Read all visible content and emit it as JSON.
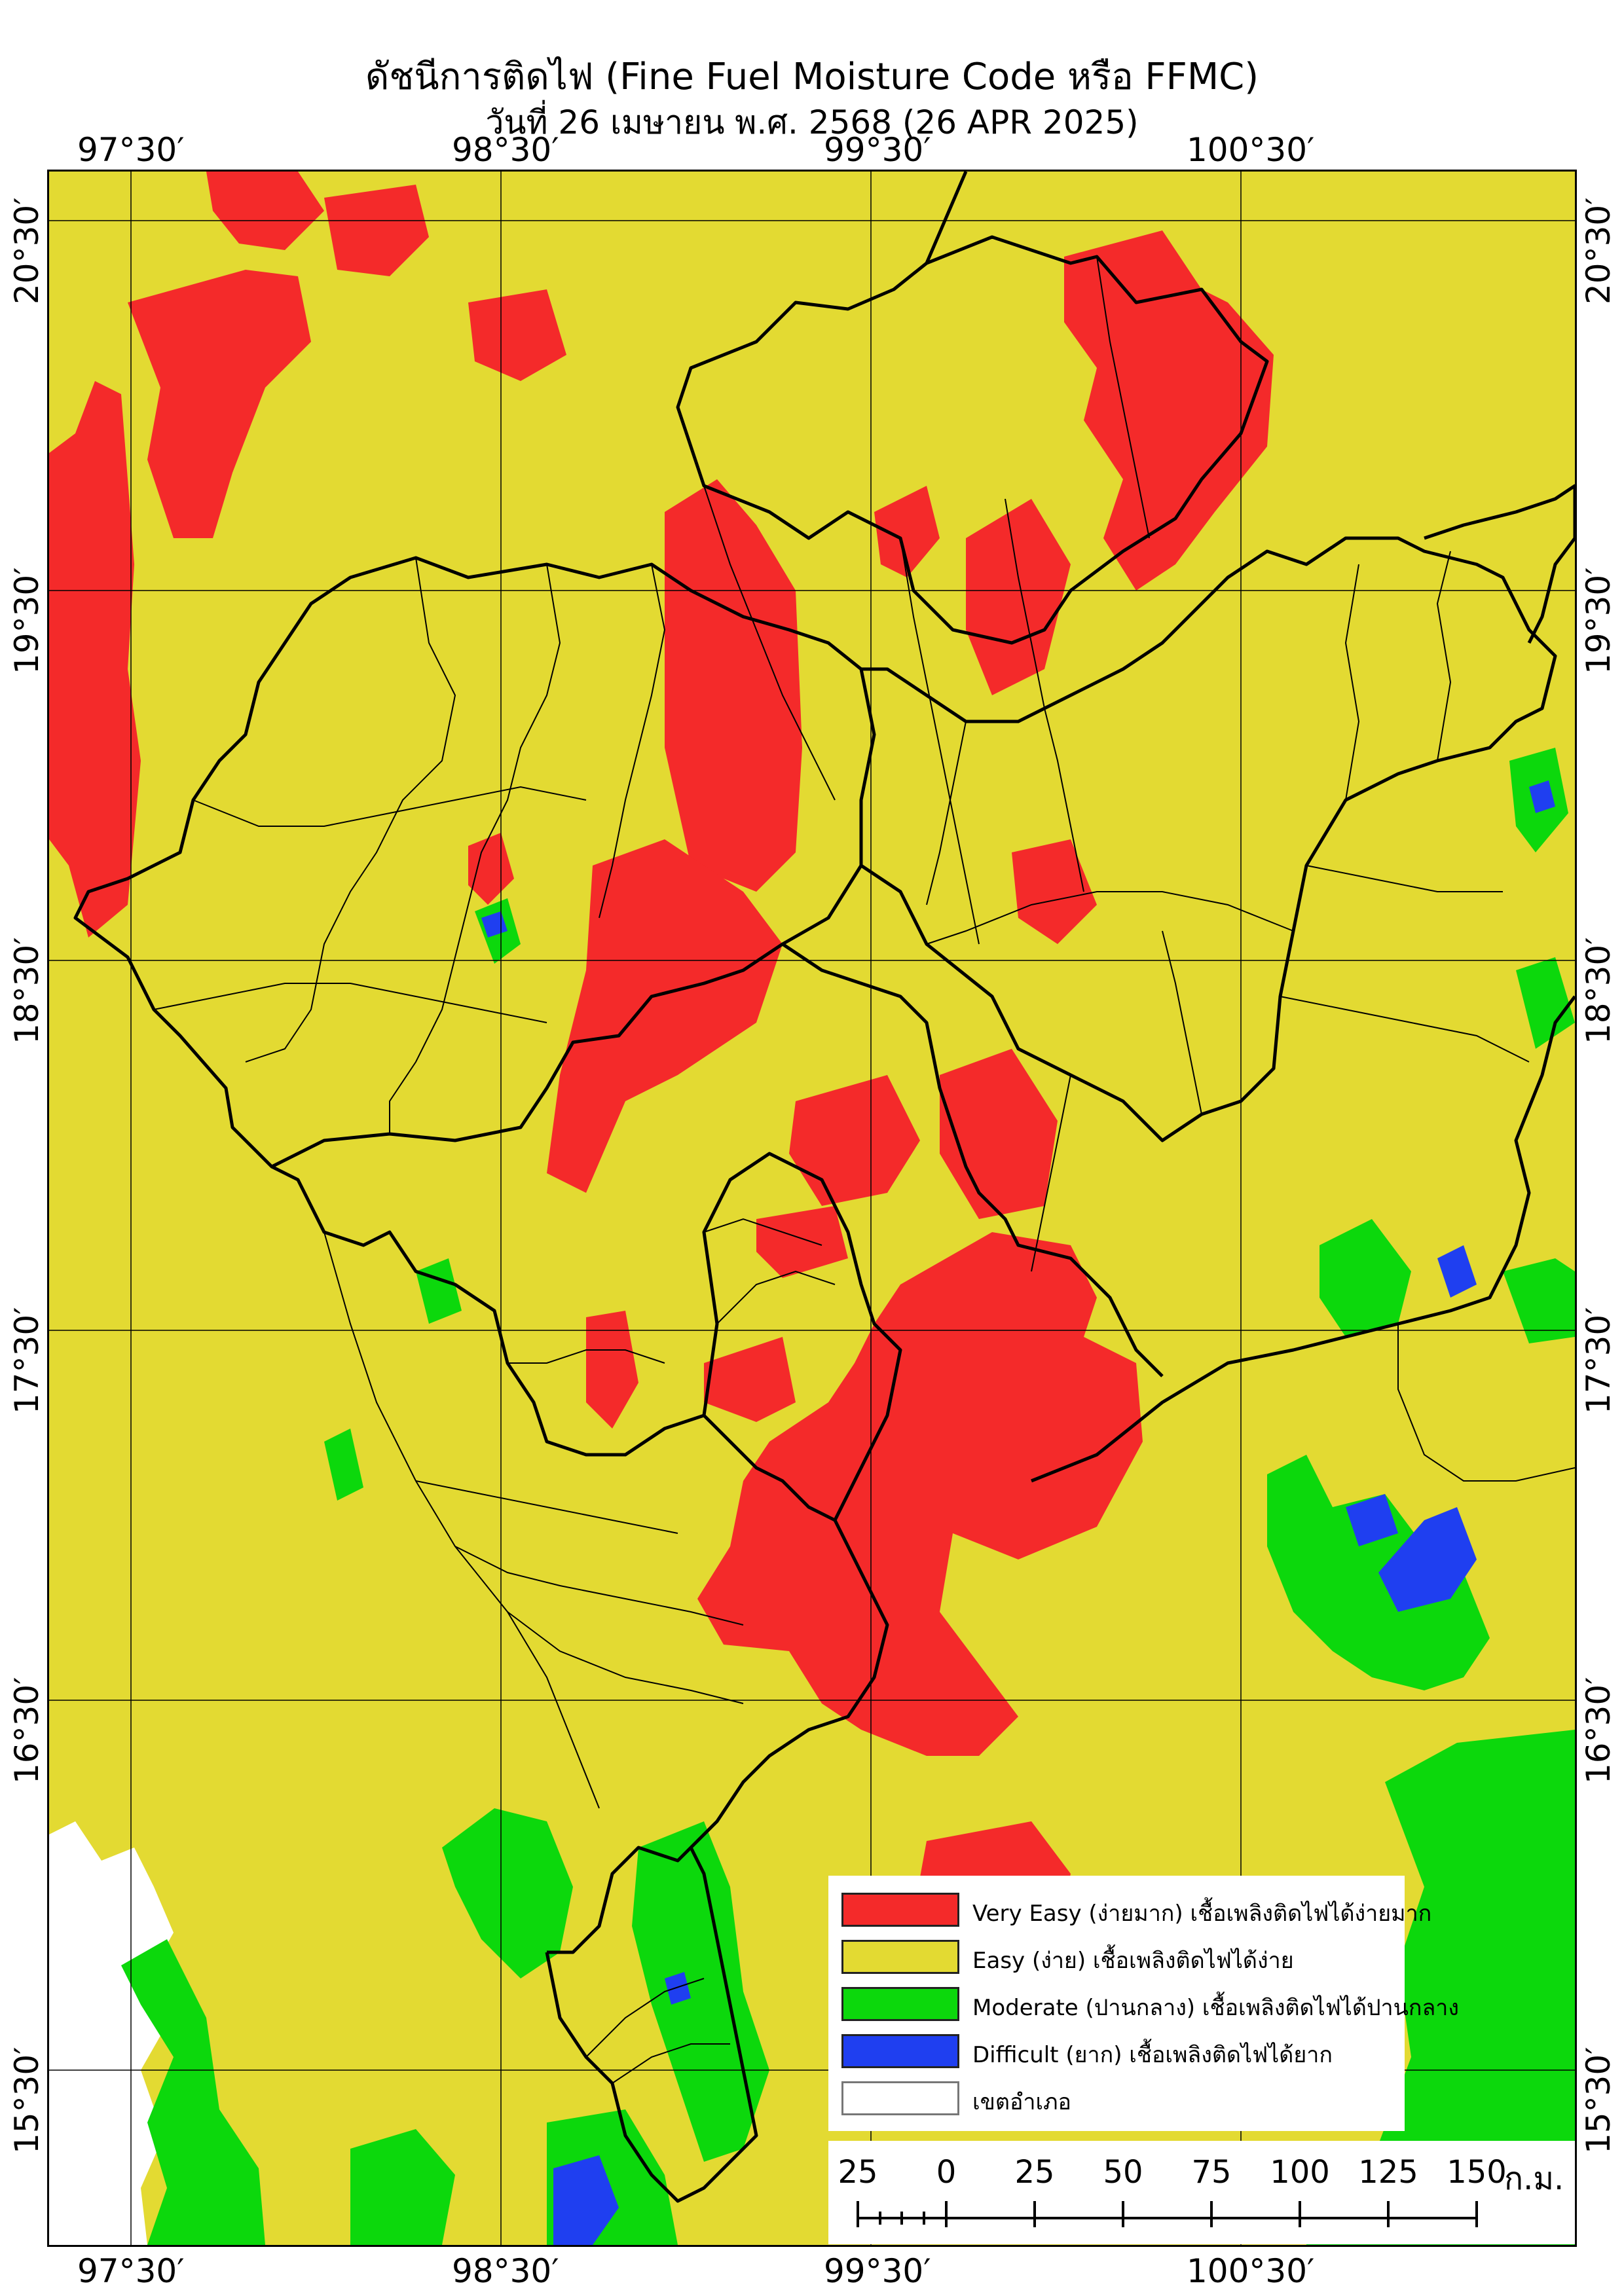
{
  "title": "ดัชนีการติดไฟ (Fine Fuel Moisture Code หรือ FFMC)",
  "subtitle": "วันที่ 26 เมษายน พ.ศ. 2568 (26 APR 2025)",
  "lon_labels": [
    "97°30′",
    "98°30′",
    "99°30′",
    "100°30′"
  ],
  "lat_labels": [
    "20°30′",
    "19°30′",
    "18°30′",
    "17°30′",
    "16°30′",
    "15°30′"
  ],
  "legend": [
    {
      "label": "Very Easy (ง่ายมาก) เชื้อเพลิงติดไฟได้ง่ายมาก",
      "color": "#f42a2a"
    },
    {
      "label": "Easy (ง่าย) เชื้อเพลิงติดไฟได้ง่าย",
      "color": "#e3da32"
    },
    {
      "label": "Moderate (ปานกลาง) เชื้อเพลิงติดไฟได้ปานกลาง",
      "color": "#0cd80c"
    },
    {
      "label": "Difficult (ยาก) เชื้อเพลิงติดไฟได้ยาก",
      "color": "#1f3ff0"
    },
    {
      "label": "เขตอำเภอ",
      "color": "#ffffff"
    }
  ],
  "scale_bar": {
    "ticks": [
      "25",
      "0",
      "25",
      "50",
      "75",
      "100",
      "125",
      "150"
    ],
    "unit": "ก.ม."
  },
  "colors": {
    "very_easy": "#f42a2a",
    "easy": "#e3da32",
    "moderate": "#0cd80c",
    "difficult": "#1f3ff0",
    "boundary": "#000000"
  }
}
